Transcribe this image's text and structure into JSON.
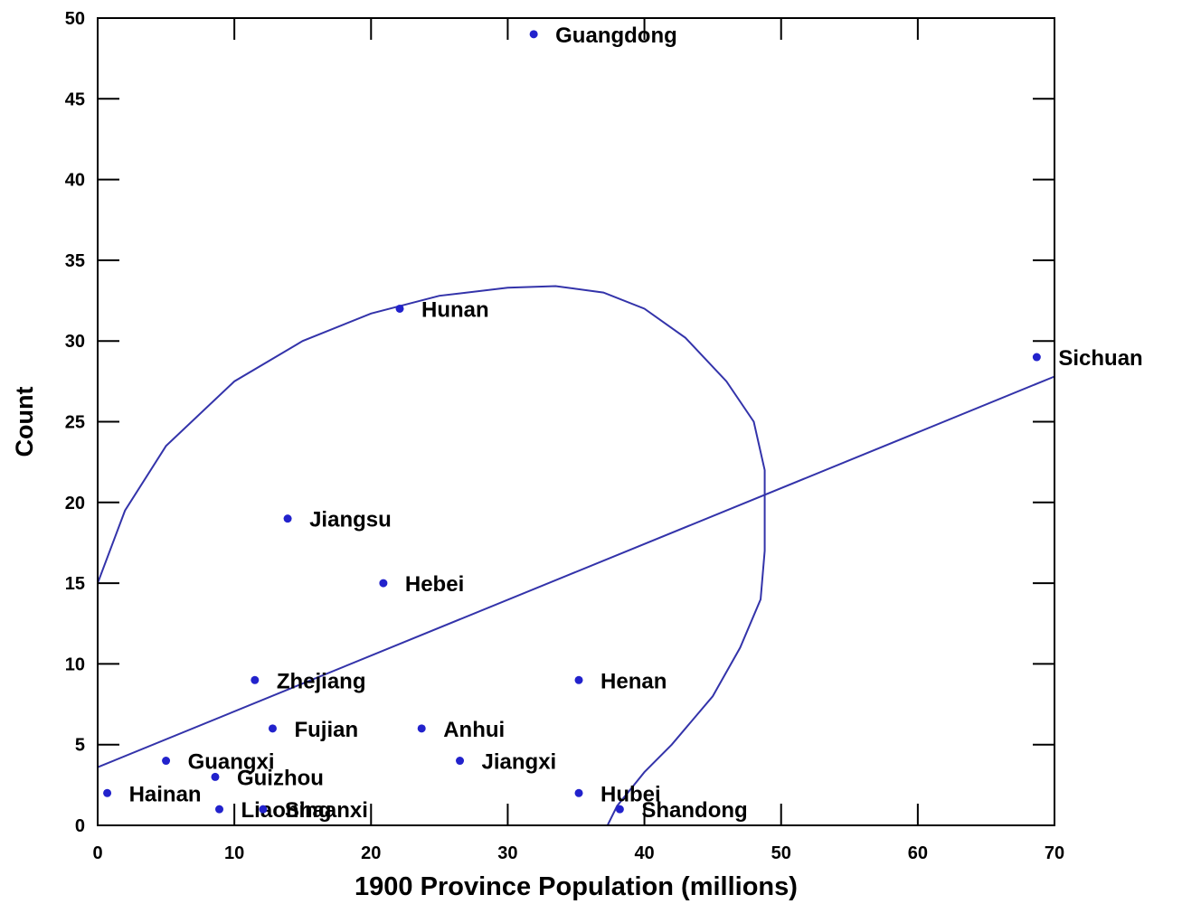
{
  "chart_data": {
    "type": "scatter",
    "xlabel": "1900 Province Population (millions)",
    "ylabel": "Count",
    "xlim": [
      0,
      70
    ],
    "ylim": [
      0,
      50
    ],
    "x_ticks": [
      0,
      10,
      20,
      30,
      40,
      50,
      60,
      70
    ],
    "y_ticks": [
      0,
      5,
      10,
      15,
      20,
      25,
      30,
      35,
      40,
      45,
      50
    ],
    "grid": false,
    "point_color": "#2222cc",
    "line_color": "#3333aa",
    "points": [
      {
        "label": "Guangdong",
        "x": 31.9,
        "y": 49
      },
      {
        "label": "Hunan",
        "x": 22.1,
        "y": 32
      },
      {
        "label": "Sichuan",
        "x": 68.7,
        "y": 29
      },
      {
        "label": "Jiangsu",
        "x": 13.9,
        "y": 19
      },
      {
        "label": "Hebei",
        "x": 20.9,
        "y": 15
      },
      {
        "label": "Zhejiang",
        "x": 11.5,
        "y": 9
      },
      {
        "label": "Henan",
        "x": 35.2,
        "y": 9
      },
      {
        "label": "Fujian",
        "x": 12.8,
        "y": 6
      },
      {
        "label": "Anhui",
        "x": 23.7,
        "y": 6
      },
      {
        "label": "Guangxi",
        "x": 5.0,
        "y": 4
      },
      {
        "label": "Jiangxi",
        "x": 26.5,
        "y": 4
      },
      {
        "label": "Guizhou",
        "x": 8.6,
        "y": 3
      },
      {
        "label": "Hainan",
        "x": 0.7,
        "y": 2
      },
      {
        "label": "Hubei",
        "x": 35.2,
        "y": 2
      },
      {
        "label": "Liaoning",
        "x": 8.9,
        "y": 1
      },
      {
        "label": "Shaanxi",
        "x": 12.1,
        "y": 1
      },
      {
        "label": "Shandong",
        "x": 38.2,
        "y": 1
      }
    ],
    "regression_line": {
      "x": [
        0,
        70
      ],
      "y": [
        3.6,
        27.8
      ]
    },
    "curve": {
      "x": [
        0,
        2,
        5,
        10,
        15,
        20,
        25,
        30,
        33.5,
        37,
        40,
        43,
        46,
        48,
        48.8,
        48.8,
        48.5,
        47,
        45,
        42,
        40,
        38,
        37.3
      ],
      "y": [
        15,
        19.5,
        23.5,
        27.5,
        30,
        31.7,
        32.8,
        33.3,
        33.4,
        33.0,
        32.0,
        30.2,
        27.5,
        25,
        22,
        17,
        14,
        11,
        8,
        5,
        3.3,
        1.2,
        0
      ]
    }
  }
}
